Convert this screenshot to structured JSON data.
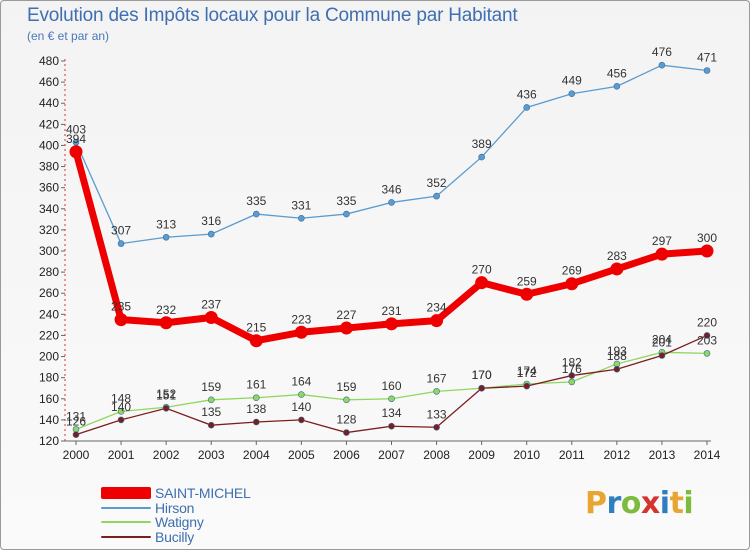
{
  "title": "Evolution des Impôts locaux pour la Commune par Habitant",
  "subtitle": "(en € et par an)",
  "logo": {
    "text": "Proxiti",
    "letters": [
      {
        "char": "P",
        "color": "#e8a532"
      },
      {
        "char": "r",
        "color": "#2f7fc0"
      },
      {
        "char": "o",
        "color": "#7cbc3a"
      },
      {
        "char": "x",
        "color": "#d3342b"
      },
      {
        "char": "i",
        "color": "#2f7fc0"
      },
      {
        "char": "t",
        "color": "#e8a532"
      },
      {
        "char": "i",
        "color": "#7cbc3a"
      }
    ]
  },
  "chart_data": {
    "type": "line",
    "title": "Evolution des Impôts locaux pour la Commune par Habitant",
    "subtitle": "(en € et par an)",
    "x": [
      "2000",
      "2001",
      "2002",
      "2003",
      "2004",
      "2005",
      "2006",
      "2007",
      "2008",
      "2009",
      "2010",
      "2011",
      "2012",
      "2013",
      "2014"
    ],
    "ylim": [
      120,
      480
    ],
    "yticks": [
      120,
      140,
      160,
      180,
      200,
      220,
      240,
      260,
      280,
      300,
      320,
      340,
      360,
      380,
      400,
      420,
      440,
      460,
      480
    ],
    "grid": false,
    "legend_position": "bottom-left",
    "series": [
      {
        "name": "SAINT-MICHEL",
        "color": "#ee0000",
        "emphasis": true,
        "values": [
          394,
          235,
          232,
          237,
          215,
          223,
          227,
          231,
          234,
          270,
          259,
          269,
          283,
          297,
          300
        ],
        "labels": [
          "394",
          "235",
          "232",
          "237",
          "215",
          "223",
          "227",
          "231",
          "234",
          "270",
          "259",
          "269",
          "283",
          "297",
          "300"
        ]
      },
      {
        "name": "Hirson",
        "color": "#5b9bd0",
        "values": [
          403,
          307,
          313,
          316,
          335,
          331,
          335,
          346,
          352,
          389,
          436,
          449,
          456,
          476,
          471
        ],
        "labels": [
          "403",
          "307",
          "313",
          "316",
          "335",
          "331",
          "335",
          "346",
          "352",
          "389",
          "436",
          "449",
          "456",
          "476",
          "471"
        ]
      },
      {
        "name": "Watigny",
        "color": "#90d660",
        "values": [
          131,
          148,
          152,
          159,
          161,
          164,
          159,
          160,
          167,
          170,
          174,
          176,
          193,
          204,
          203
        ],
        "labels": [
          "131",
          "148",
          "152",
          "159",
          "161",
          "164",
          "159",
          "160",
          "167",
          "170",
          "174",
          "176",
          "193",
          "204",
          "203"
        ]
      },
      {
        "name": "Bucilly",
        "color": "#7a1e1e",
        "values": [
          126,
          140,
          151,
          135,
          138,
          140,
          128,
          134,
          133,
          170,
          172,
          182,
          188,
          201,
          220
        ],
        "labels": [
          "126",
          "140",
          "151",
          "135",
          "138",
          "140",
          "128",
          "134",
          "133",
          "170",
          "172",
          "182",
          "188",
          "201",
          "220"
        ]
      }
    ]
  }
}
